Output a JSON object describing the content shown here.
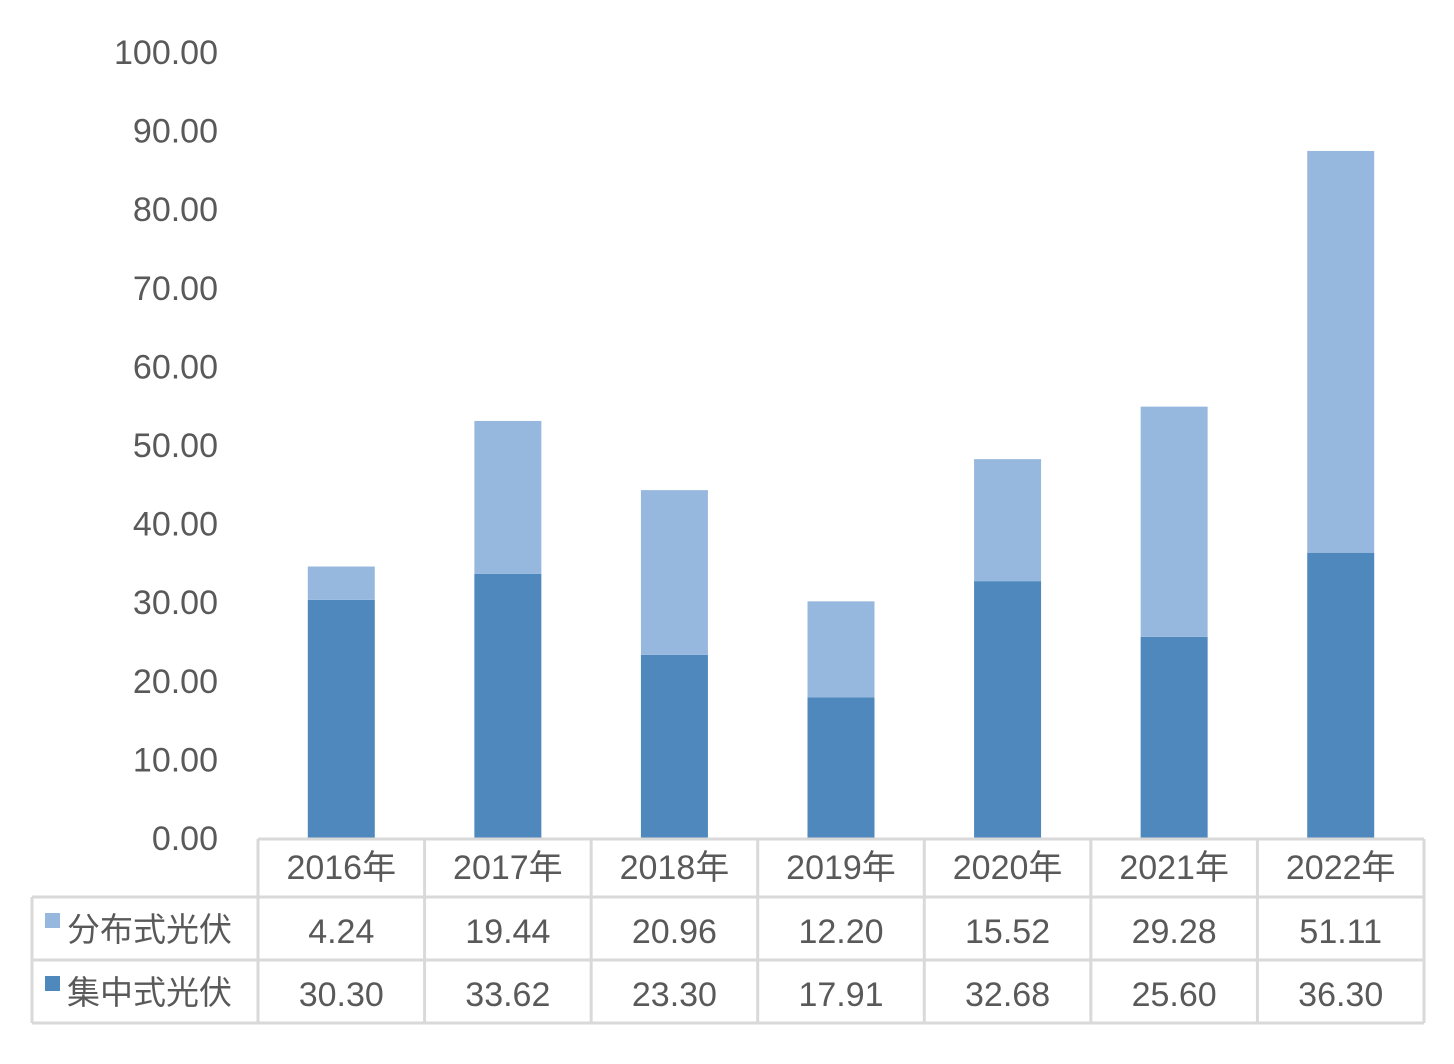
{
  "chart_data": {
    "type": "bar",
    "stacked": true,
    "categories": [
      "2016年",
      "2017年",
      "2018年",
      "2019年",
      "2020年",
      "2021年",
      "2022年"
    ],
    "series": [
      {
        "name": "集中式光伏",
        "color": "#4f88bd",
        "values": [
          30.3,
          33.62,
          23.3,
          17.91,
          32.68,
          25.6,
          36.3
        ],
        "display_values": [
          "30.30",
          "33.62",
          "23.30",
          "17.91",
          "32.68",
          "25.60",
          "36.30"
        ]
      },
      {
        "name": "分布式光伏",
        "color": "#97b8de",
        "values": [
          4.24,
          19.44,
          20.96,
          12.2,
          15.52,
          29.28,
          51.11
        ],
        "display_values": [
          "4.24",
          "19.44",
          "20.96",
          "12.20",
          "15.52",
          "29.28",
          "51.11"
        ]
      }
    ],
    "table_row_order": [
      "分布式光伏",
      "集中式光伏"
    ],
    "yticks": [
      "0.00",
      "10.00",
      "20.00",
      "30.00",
      "40.00",
      "50.00",
      "60.00",
      "70.00",
      "80.00",
      "90.00",
      "100.00"
    ],
    "ylim": [
      0,
      100
    ],
    "grid": false,
    "legend": "data-table"
  }
}
